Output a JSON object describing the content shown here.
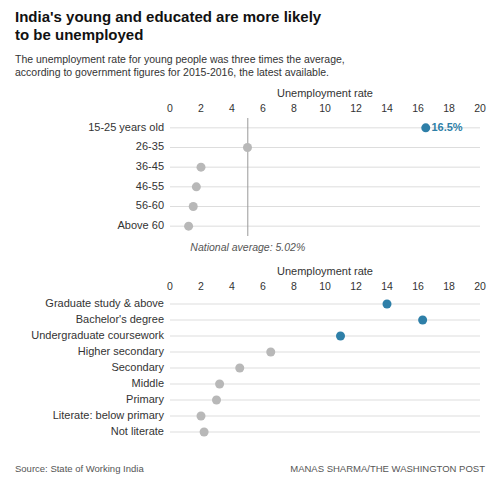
{
  "chart_data": [
    {
      "type": "dot",
      "title": "India's young and educated are more likely\nto be unemployed",
      "subtitle": "The unemployment rate for young people was three times the average,\naccording to government figures for 2015-2016, the latest available.",
      "xlabel": "Unemployment rate",
      "categories": [
        "15-25 years old",
        "26-35",
        "36-45",
        "46-55",
        "56-60",
        "Above 60"
      ],
      "values": [
        16.5,
        5.0,
        2.0,
        1.7,
        1.5,
        1.2
      ],
      "colors": [
        "#2e7fa8",
        "#b8b8b8",
        "#b8b8b8",
        "#b8b8b8",
        "#b8b8b8",
        "#b8b8b8"
      ],
      "xlim": [
        0,
        20
      ],
      "xticks": [
        0,
        2,
        4,
        6,
        8,
        10,
        12,
        14,
        16,
        18,
        20
      ],
      "grid": true,
      "reference_line": {
        "value": 5.02,
        "label": "National average: 5.02%"
      },
      "annotations": [
        {
          "text": "● 16.5%",
          "x": 16.5,
          "y": "15-25 years old"
        }
      ]
    },
    {
      "type": "dot",
      "xlabel": "Unemployment rate",
      "categories": [
        "Graduate study & above",
        "Bachelor's degree",
        "Undergraduate coursework",
        "Higher secondary",
        "Secondary",
        "Middle",
        "Primary",
        "Literate: below primary",
        "Not literate"
      ],
      "values": [
        14.0,
        16.3,
        11.0,
        6.5,
        4.5,
        3.2,
        3.0,
        2.0,
        2.2
      ],
      "colors": [
        "#2e7fa8",
        "#2e7fa8",
        "#2e7fa8",
        "#b8b8b8",
        "#b8b8b8",
        "#b8b8b8",
        "#b8b8b8",
        "#b8b8b8",
        "#b8b8b8"
      ],
      "xlim": [
        0,
        20
      ],
      "xticks": [
        0,
        2,
        4,
        6,
        8,
        10,
        12,
        14,
        16,
        18,
        20
      ],
      "grid": true,
      "source": "Source: State of Working India",
      "credit": "MANAS SHARMA/THE WASHINGTON POST"
    }
  ]
}
